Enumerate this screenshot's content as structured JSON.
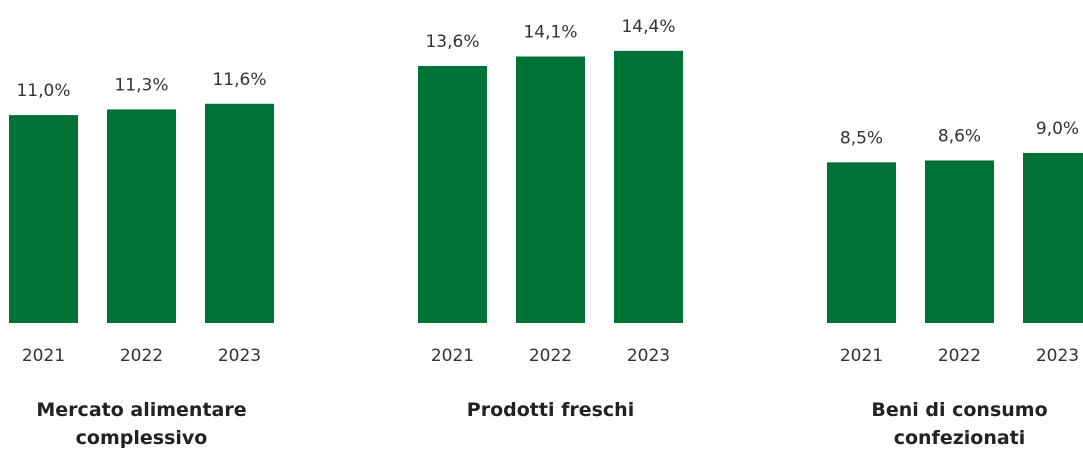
{
  "chart_data": [
    {
      "type": "bar",
      "title": "Mercato alimentare complessivo",
      "categories": [
        "2021",
        "2022",
        "2023"
      ],
      "values": [
        11.0,
        11.3,
        11.6
      ],
      "value_labels": [
        "11,0%",
        "11,3%",
        "11,6%"
      ],
      "color": "#007236"
    },
    {
      "type": "bar",
      "title": "Prodotti freschi",
      "categories": [
        "2021",
        "2022",
        "2023"
      ],
      "values": [
        13.6,
        14.1,
        14.4
      ],
      "value_labels": [
        "13,6%",
        "14,1%",
        "14,4%"
      ],
      "color": "#007236"
    },
    {
      "type": "bar",
      "title": "Beni di consumo confezionati",
      "categories": [
        "2021",
        "2022",
        "2023"
      ],
      "values": [
        8.5,
        8.6,
        9.0
      ],
      "value_labels": [
        "8,5%",
        "8,6%",
        "9,0%"
      ],
      "color": "#007236"
    }
  ]
}
